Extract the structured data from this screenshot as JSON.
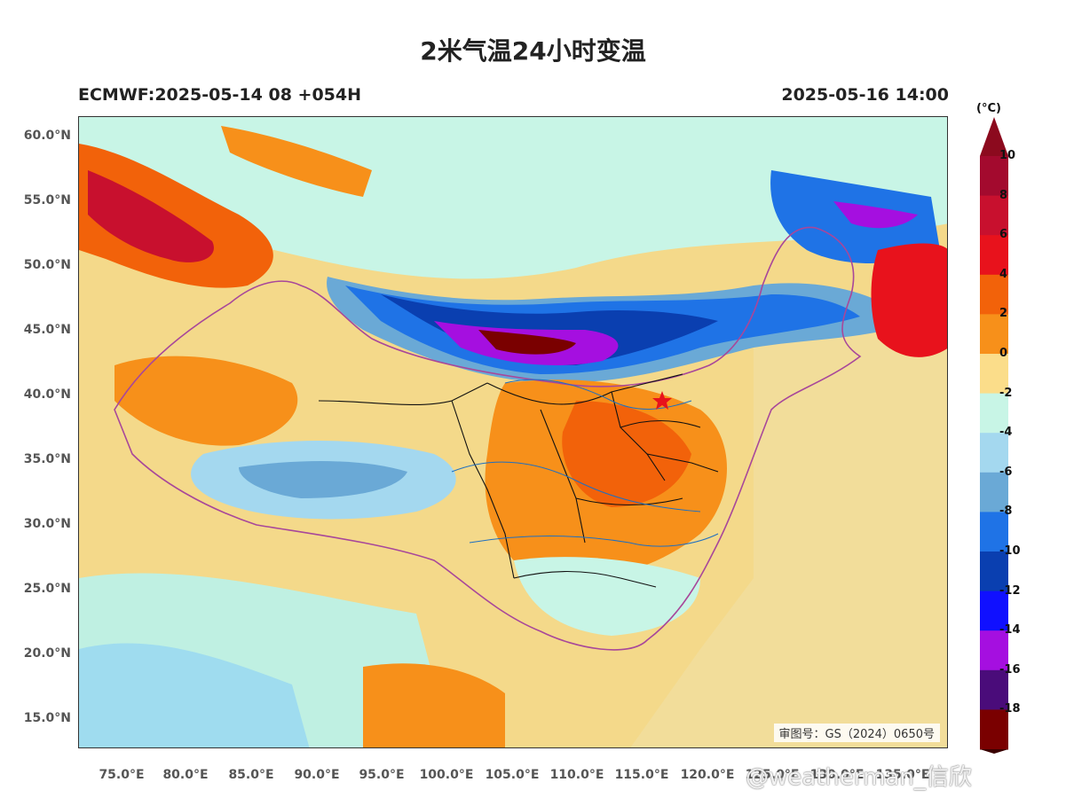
{
  "title": "2米气温24小时变温",
  "model_run": "ECMWF:2025-05-14 08 +054H",
  "valid_time": "2025-05-16 14:00",
  "approval_number": "审图号：GS（2024）0650号",
  "watermark": "@weatherman_信欣",
  "lat_labels": [
    "60.0°N",
    "55.0°N",
    "50.0°N",
    "45.0°N",
    "40.0°N",
    "35.0°N",
    "30.0°N",
    "25.0°N",
    "20.0°N",
    "15.0°N"
  ],
  "lon_labels": [
    "75.0°E",
    "80.0°E",
    "85.0°E",
    "90.0°E",
    "95.0°E",
    "100.0°E",
    "105.0°E",
    "110.0°E",
    "115.0°E",
    "120.0°E",
    "125.0°E",
    "130.0°E",
    "135.0°E"
  ],
  "colorbar": {
    "unit": "(°C)",
    "labels": [
      "10",
      "8",
      "6",
      "4",
      "2",
      "0",
      "-2",
      "-4",
      "-6",
      "-8",
      "-10",
      "-12",
      "-14",
      "-16",
      "-18"
    ],
    "colors": [
      "#a30a2e",
      "#c8102e",
      "#e8121c",
      "#f2620a",
      "#f7901a",
      "#fbdd8a",
      "#c8f5e6",
      "#a4d8ef",
      "#6aa9d6",
      "#1f73e6",
      "#0a3fb0",
      "#1010ff",
      "#a50fe0",
      "#4a0c7a",
      "#7a0000"
    ],
    "top_cap_color": "#8c0a1e",
    "bottom_cap_color": "#3a0000"
  },
  "map": {
    "lon_range": [
      72,
      138
    ],
    "lat_range": [
      12.5,
      62
    ],
    "marker": "red star at Beijing"
  }
}
